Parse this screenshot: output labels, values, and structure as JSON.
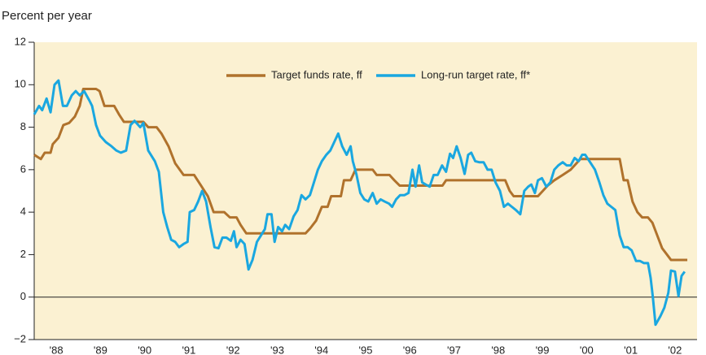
{
  "chart_data": {
    "type": "line",
    "y_label": "Percent per year",
    "xlim": [
      1988,
      2003
    ],
    "xticks": [
      {
        "value": 1988.5,
        "label": "'88"
      },
      {
        "value": 1989.5,
        "label": "'89"
      },
      {
        "value": 1990.5,
        "label": "'90"
      },
      {
        "value": 1991.5,
        "label": "'91"
      },
      {
        "value": 1992.5,
        "label": "'92"
      },
      {
        "value": 1993.5,
        "label": "'93"
      },
      {
        "value": 1994.5,
        "label": "'94"
      },
      {
        "value": 1995.5,
        "label": "'95"
      },
      {
        "value": 1996.5,
        "label": "'96"
      },
      {
        "value": 1997.5,
        "label": "'97"
      },
      {
        "value": 1998.5,
        "label": "'98"
      },
      {
        "value": 1999.5,
        "label": "'99"
      },
      {
        "value": 2000.5,
        "label": "'00"
      },
      {
        "value": 2001.5,
        "label": "'01"
      },
      {
        "value": 2002.5,
        "label": "'02"
      }
    ],
    "ylim": [
      -2,
      12
    ],
    "yticks": [
      {
        "value": -2,
        "label": "−2"
      },
      0,
      2,
      4,
      6,
      8,
      10,
      12
    ],
    "legend": "top",
    "series": [
      {
        "name": "Target funds rate, ff",
        "color": "#b0722c",
        "x": [
          1988.0,
          1988.15,
          1988.24,
          1988.37,
          1988.42,
          1988.55,
          1988.66,
          1988.79,
          1988.92,
          1989.03,
          1989.11,
          1989.4,
          1989.48,
          1989.59,
          1989.81,
          1989.92,
          1990.03,
          1990.47,
          1990.58,
          1990.77,
          1990.88,
          1991.04,
          1991.19,
          1991.38,
          1991.62,
          1991.76,
          1991.93,
          1992.06,
          1992.3,
          1992.43,
          1992.58,
          1992.67,
          1992.8,
          1994.14,
          1994.25,
          1994.38,
          1994.51,
          1994.64,
          1994.72,
          1994.94,
          1995.01,
          1995.16,
          1995.27,
          1995.66,
          1995.75,
          1996.04,
          1996.15,
          1996.27,
          1997.24,
          1997.32,
          1998.66,
          1998.76,
          1998.85,
          1999.4,
          1999.51,
          1999.62,
          1999.77,
          1999.96,
          2000.14,
          2000.36,
          2001.25,
          2001.34,
          2001.43,
          2001.54,
          2001.65,
          2001.76,
          2001.89,
          2001.99,
          2002.1,
          2002.21,
          2002.32,
          2002.41,
          2002.78
        ],
        "values": [
          6.7,
          6.5,
          6.8,
          6.8,
          7.2,
          7.5,
          8.1,
          8.2,
          8.5,
          9.0,
          9.8,
          9.8,
          9.7,
          9.0,
          9.0,
          8.6,
          8.25,
          8.25,
          8.0,
          8.0,
          7.7,
          7.1,
          6.3,
          5.75,
          5.75,
          5.3,
          4.75,
          4.0,
          4.0,
          3.75,
          3.75,
          3.4,
          3.0,
          3.0,
          3.25,
          3.6,
          4.25,
          4.25,
          4.75,
          4.75,
          5.5,
          5.5,
          6.0,
          6.0,
          5.75,
          5.75,
          5.5,
          5.25,
          5.25,
          5.5,
          5.5,
          5.0,
          4.75,
          4.75,
          5.0,
          5.25,
          5.5,
          5.75,
          6.0,
          6.5,
          6.5,
          5.5,
          5.5,
          4.5,
          4.0,
          3.75,
          3.75,
          3.5,
          2.9,
          2.3,
          2.0,
          1.75,
          1.75
        ]
      },
      {
        "name": "Long-run target rate, ff*",
        "color": "#1aa7e0",
        "x": [
          1988.0,
          1988.11,
          1988.18,
          1988.28,
          1988.37,
          1988.46,
          1988.55,
          1988.65,
          1988.74,
          1988.85,
          1988.94,
          1989.03,
          1989.13,
          1989.25,
          1989.31,
          1989.4,
          1989.49,
          1989.62,
          1989.75,
          1989.86,
          1989.96,
          1990.08,
          1990.18,
          1990.27,
          1990.4,
          1990.47,
          1990.58,
          1990.73,
          1990.82,
          1990.92,
          1991.01,
          1991.1,
          1991.19,
          1991.28,
          1991.38,
          1991.47,
          1991.52,
          1991.62,
          1991.71,
          1991.8,
          1991.89,
          1991.99,
          1992.08,
          1992.17,
          1992.26,
          1992.35,
          1992.45,
          1992.52,
          1992.58,
          1992.67,
          1992.76,
          1992.85,
          1992.94,
          1993.04,
          1993.13,
          1993.22,
          1993.28,
          1993.37,
          1993.44,
          1993.52,
          1993.61,
          1993.68,
          1993.77,
          1993.87,
          1993.96,
          1994.05,
          1994.14,
          1994.24,
          1994.33,
          1994.42,
          1994.51,
          1994.61,
          1994.7,
          1994.79,
          1994.88,
          1994.97,
          1995.07,
          1995.16,
          1995.21,
          1995.29,
          1995.38,
          1995.47,
          1995.56,
          1995.66,
          1995.75,
          1995.84,
          1995.93,
          1996.03,
          1996.1,
          1996.19,
          1996.28,
          1996.38,
          1996.47,
          1996.56,
          1996.63,
          1996.71,
          1996.78,
          1996.86,
          1996.95,
          1997.04,
          1997.13,
          1997.23,
          1997.32,
          1997.41,
          1997.48,
          1997.56,
          1997.65,
          1997.74,
          1997.82,
          1997.89,
          1997.98,
          1998.07,
          1998.17,
          1998.26,
          1998.35,
          1998.44,
          1998.54,
          1998.63,
          1998.72,
          1998.81,
          1998.9,
          1999.0,
          1999.09,
          1999.18,
          1999.25,
          1999.33,
          1999.4,
          1999.49,
          1999.59,
          1999.68,
          1999.77,
          1999.86,
          1999.96,
          2000.05,
          2000.14,
          2000.23,
          2000.32,
          2000.4,
          2000.47,
          2000.58,
          2000.69,
          2000.79,
          2000.88,
          2000.97,
          2001.06,
          2001.15,
          2001.25,
          2001.34,
          2001.43,
          2001.52,
          2001.62,
          2001.71,
          2001.8,
          2001.89,
          2001.95,
          2002.0,
          2002.06,
          2002.17,
          2002.26,
          2002.35,
          2002.41,
          2002.5,
          2002.58,
          2002.65,
          2002.72
        ],
        "values": [
          8.6,
          9.0,
          8.8,
          9.35,
          8.7,
          10.0,
          10.2,
          9.0,
          9.0,
          9.5,
          9.7,
          9.5,
          9.7,
          9.25,
          9.0,
          8.1,
          7.6,
          7.3,
          7.1,
          6.9,
          6.8,
          6.9,
          8.1,
          8.3,
          8.0,
          8.2,
          6.9,
          6.4,
          5.9,
          4.0,
          3.3,
          2.7,
          2.6,
          2.35,
          2.5,
          2.6,
          4.0,
          4.1,
          4.5,
          5.0,
          4.5,
          3.3,
          2.35,
          2.3,
          2.8,
          2.8,
          2.65,
          3.1,
          2.35,
          2.7,
          2.5,
          1.3,
          1.75,
          2.6,
          2.9,
          3.2,
          3.9,
          3.9,
          2.6,
          3.3,
          3.1,
          3.4,
          3.2,
          3.8,
          4.1,
          4.8,
          4.6,
          4.8,
          5.4,
          6.0,
          6.4,
          6.7,
          6.9,
          7.3,
          7.7,
          7.1,
          6.7,
          7.1,
          6.4,
          5.8,
          4.9,
          4.6,
          4.5,
          4.9,
          4.4,
          4.6,
          4.5,
          4.4,
          4.25,
          4.6,
          4.8,
          4.8,
          4.9,
          6.0,
          5.2,
          6.2,
          5.4,
          5.3,
          5.2,
          5.75,
          5.75,
          6.2,
          5.9,
          6.75,
          6.55,
          7.1,
          6.55,
          5.8,
          6.7,
          6.8,
          6.4,
          6.35,
          6.35,
          6.0,
          6.0,
          5.4,
          5.0,
          4.25,
          4.4,
          4.25,
          4.1,
          3.9,
          5.0,
          5.2,
          5.3,
          4.9,
          5.5,
          5.6,
          5.2,
          5.4,
          6.0,
          6.2,
          6.35,
          6.2,
          6.2,
          6.55,
          6.4,
          6.7,
          6.7,
          6.35,
          6.0,
          5.4,
          4.8,
          4.4,
          4.25,
          4.1,
          2.9,
          2.35,
          2.35,
          2.2,
          1.7,
          1.7,
          1.6,
          1.6,
          0.9,
          0.0,
          -1.3,
          -0.9,
          -0.5,
          0.2,
          1.25,
          1.2,
          0.05,
          1.0,
          1.2
        ]
      }
    ]
  }
}
